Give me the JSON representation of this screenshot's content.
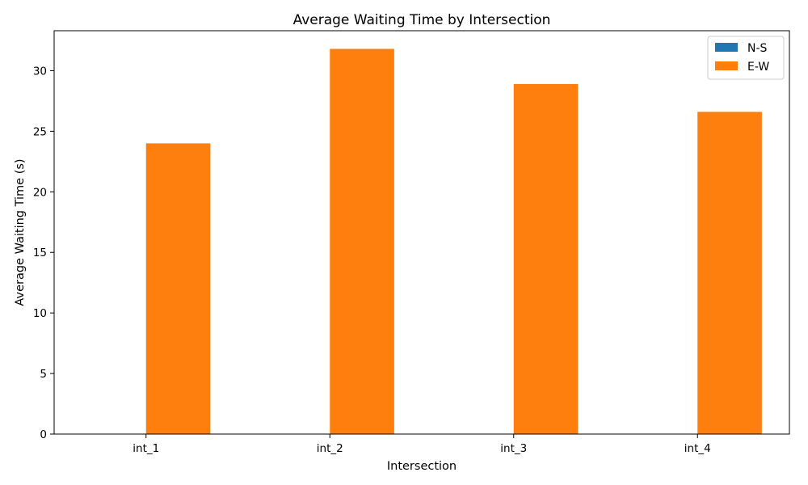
{
  "chart_data": {
    "type": "bar",
    "title": "Average Waiting Time by Intersection",
    "xlabel": "Intersection",
    "ylabel": "Average Waiting Time (s)",
    "categories": [
      "int_1",
      "int_2",
      "int_3",
      "int_4"
    ],
    "series": [
      {
        "name": "N-S",
        "color": "#1f77b4",
        "values": [
          0,
          0,
          0,
          0
        ]
      },
      {
        "name": "E-W",
        "color": "#ff7f0e",
        "values": [
          24.0,
          31.8,
          28.9,
          26.6
        ]
      }
    ],
    "ylim": [
      0,
      33.3
    ],
    "yticks": [
      0,
      5,
      10,
      15,
      20,
      25,
      30
    ],
    "grid": false,
    "legend": "top-right"
  }
}
